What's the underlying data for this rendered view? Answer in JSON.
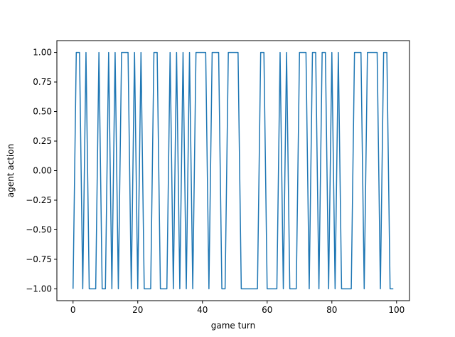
{
  "chart_data": {
    "type": "line",
    "title": "",
    "xlabel": "game turn",
    "ylabel": "agent action",
    "xlim": [
      -5,
      104
    ],
    "ylim": [
      -1.1,
      1.1
    ],
    "xticks": [
      0,
      20,
      40,
      60,
      80,
      100
    ],
    "xtick_labels": [
      "0",
      "20",
      "40",
      "60",
      "80",
      "100"
    ],
    "yticks": [
      -1.0,
      -0.75,
      -0.5,
      -0.25,
      0.0,
      0.25,
      0.5,
      0.75,
      1.0
    ],
    "ytick_labels": [
      "−1.00",
      "−0.75",
      "−0.50",
      "−0.25",
      "0.00",
      "0.25",
      "0.50",
      "0.75",
      "1.00"
    ],
    "grid": false,
    "series": [
      {
        "color": "#1f77b4",
        "x": [
          0,
          1,
          2,
          3,
          4,
          5,
          6,
          7,
          8,
          9,
          10,
          11,
          12,
          13,
          14,
          15,
          16,
          17,
          18,
          19,
          20,
          21,
          22,
          23,
          24,
          25,
          26,
          27,
          28,
          29,
          30,
          31,
          32,
          33,
          34,
          35,
          36,
          37,
          38,
          39,
          40,
          41,
          42,
          43,
          44,
          45,
          46,
          47,
          48,
          49,
          50,
          51,
          52,
          53,
          54,
          55,
          56,
          57,
          58,
          59,
          60,
          61,
          62,
          63,
          64,
          65,
          66,
          67,
          68,
          69,
          70,
          71,
          72,
          73,
          74,
          75,
          76,
          77,
          78,
          79,
          80,
          81,
          82,
          83,
          84,
          85,
          86,
          87,
          88,
          89,
          90,
          91,
          92,
          93,
          94,
          95,
          96,
          97,
          98,
          99
        ],
        "y": [
          -1,
          1,
          1,
          -1,
          1,
          -1,
          -1,
          -1,
          1,
          -1,
          -1,
          1,
          -1,
          1,
          -1,
          1,
          1,
          1,
          -1,
          1,
          -1,
          1,
          -1,
          -1,
          -1,
          1,
          1,
          -1,
          -1,
          -1,
          1,
          -1,
          1,
          -1,
          1,
          -1,
          1,
          -1,
          1,
          1,
          1,
          1,
          -1,
          1,
          1,
          1,
          -1,
          -1,
          1,
          1,
          1,
          1,
          -1,
          -1,
          -1,
          -1,
          -1,
          -1,
          1,
          1,
          -1,
          -1,
          -1,
          -1,
          1,
          -1,
          1,
          -1,
          -1,
          -1,
          1,
          1,
          1,
          -1,
          1,
          1,
          -1,
          1,
          1,
          -1,
          1,
          -1,
          1,
          -1,
          -1,
          -1,
          -1,
          1,
          1,
          1,
          -1,
          1,
          1,
          1,
          1,
          -1,
          1,
          1,
          -1,
          -1
        ]
      }
    ]
  }
}
